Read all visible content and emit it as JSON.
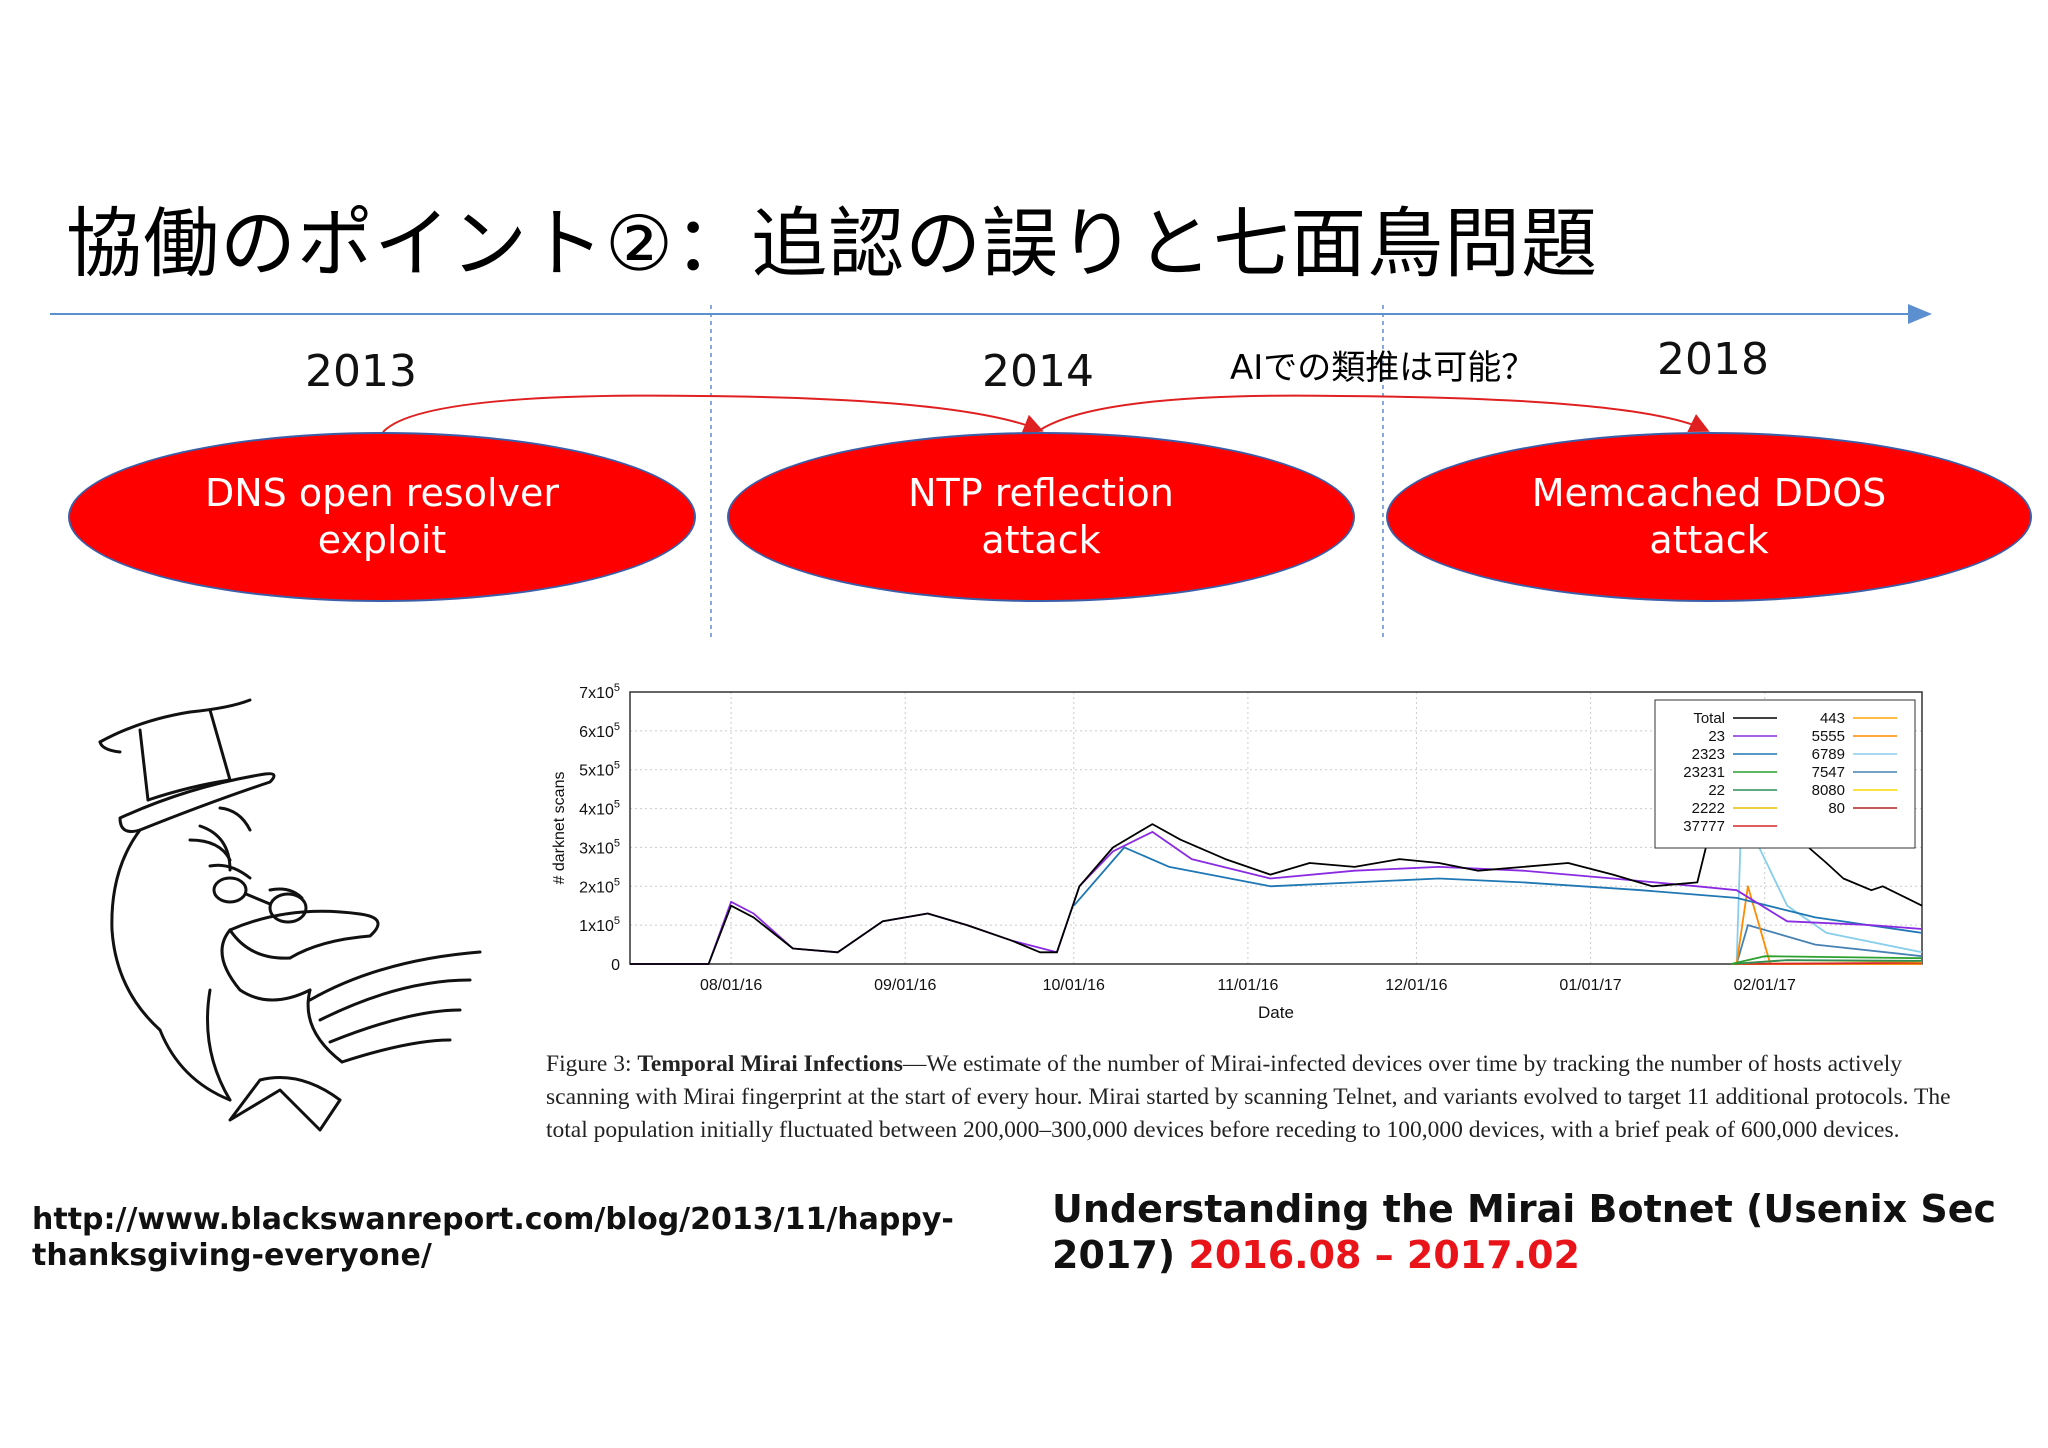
{
  "slide": {
    "title": "協働のポイント②：追認の誤りと七面鳥問題",
    "timeline": {
      "years": [
        "2013",
        "2014",
        "2018"
      ],
      "question": "AIでの類推は可能？",
      "events": [
        {
          "line1": "DNS open resolver",
          "line2": "exploit"
        },
        {
          "line1": "NTP reflection",
          "line2": "attack"
        },
        {
          "line1": "Memcached DDOS",
          "line2": "attack"
        }
      ],
      "colors": {
        "event_fill": "#ff0000",
        "event_border": "#3b5ea8",
        "arrow": "#5b8fd0",
        "curve": "#e02020"
      }
    },
    "turkey_image": "turkey-sketch-icon",
    "figure_caption": {
      "label": "Figure 3:",
      "bold_title": "Temporal Mirai Infections",
      "text": "—We estimate of the number of Mirai-infected devices over time by tracking the number of hosts actively scanning with Mirai fingerprint at the start of every hour. Mirai started by scanning Telnet, and variants evolved to target 11 additional protocols. The total population initially fluctuated between 200,000–300,000 devices before receding to 100,000 devices, with a brief peak of 600,000 devices."
    },
    "source_url": "http://www.blackswanreport.com/blog/2013/11/happy-thanksgiving-everyone/",
    "reference": {
      "text": "Understanding the Mirai Botnet (Usenix Sec 2017)",
      "dates": "2016.08 – 2017.02",
      "dates_color": "#e8141a"
    }
  },
  "chart_data": {
    "type": "line",
    "title": "",
    "xlabel": "Date",
    "ylabel": "# darknet scans",
    "x_ticks": [
      "08/01/16",
      "09/01/16",
      "10/01/16",
      "11/01/16",
      "12/01/16",
      "01/01/17",
      "02/01/17"
    ],
    "y_ticks": [
      "0",
      "1x10^5",
      "2x10^5",
      "3x10^5",
      "4x10^5",
      "5x10^5",
      "6x10^5",
      "7x10^5"
    ],
    "ylim": [
      0,
      700000
    ],
    "xlim": [
      "2016-07-14",
      "2017-03-01"
    ],
    "legend_placement": "top-right",
    "grid": true,
    "series": [
      {
        "name": "Total",
        "color": "#000000",
        "points": [
          [
            "2016-07-14",
            0
          ],
          [
            "2016-07-28",
            0
          ],
          [
            "2016-08-01",
            150000
          ],
          [
            "2016-08-05",
            120000
          ],
          [
            "2016-08-12",
            40000
          ],
          [
            "2016-08-20",
            30000
          ],
          [
            "2016-08-28",
            110000
          ],
          [
            "2016-09-05",
            130000
          ],
          [
            "2016-09-12",
            100000
          ],
          [
            "2016-09-20",
            60000
          ],
          [
            "2016-09-25",
            30000
          ],
          [
            "2016-09-28",
            30000
          ],
          [
            "2016-10-02",
            200000
          ],
          [
            "2016-10-08",
            300000
          ],
          [
            "2016-10-15",
            360000
          ],
          [
            "2016-10-20",
            320000
          ],
          [
            "2016-10-28",
            270000
          ],
          [
            "2016-11-05",
            230000
          ],
          [
            "2016-11-12",
            260000
          ],
          [
            "2016-11-20",
            250000
          ],
          [
            "2016-11-28",
            270000
          ],
          [
            "2016-12-05",
            260000
          ],
          [
            "2016-12-12",
            240000
          ],
          [
            "2016-12-20",
            250000
          ],
          [
            "2016-12-28",
            260000
          ],
          [
            "2017-01-05",
            230000
          ],
          [
            "2017-01-12",
            200000
          ],
          [
            "2017-01-20",
            210000
          ],
          [
            "2017-01-27",
            620000
          ],
          [
            "2017-01-30",
            480000
          ],
          [
            "2017-02-03",
            400000
          ],
          [
            "2017-02-08",
            310000
          ],
          [
            "2017-02-12",
            260000
          ],
          [
            "2017-02-15",
            220000
          ],
          [
            "2017-02-20",
            190000
          ],
          [
            "2017-02-22",
            200000
          ],
          [
            "2017-03-01",
            150000
          ]
        ]
      },
      {
        "name": "23",
        "color": "#8a2be2",
        "points": [
          [
            "2016-07-14",
            0
          ],
          [
            "2016-07-28",
            0
          ],
          [
            "2016-08-01",
            160000
          ],
          [
            "2016-08-05",
            130000
          ],
          [
            "2016-08-12",
            40000
          ],
          [
            "2016-08-20",
            30000
          ],
          [
            "2016-08-28",
            110000
          ],
          [
            "2016-09-05",
            130000
          ],
          [
            "2016-09-12",
            100000
          ],
          [
            "2016-09-20",
            60000
          ],
          [
            "2016-09-28",
            30000
          ],
          [
            "2016-10-02",
            200000
          ],
          [
            "2016-10-08",
            290000
          ],
          [
            "2016-10-15",
            340000
          ],
          [
            "2016-10-22",
            270000
          ],
          [
            "2016-11-05",
            220000
          ],
          [
            "2016-11-20",
            240000
          ],
          [
            "2016-12-05",
            250000
          ],
          [
            "2016-12-20",
            240000
          ],
          [
            "2017-01-05",
            220000
          ],
          [
            "2017-01-20",
            200000
          ],
          [
            "2017-01-27",
            190000
          ],
          [
            "2017-02-05",
            110000
          ],
          [
            "2017-02-20",
            100000
          ],
          [
            "2017-03-01",
            90000
          ]
        ]
      },
      {
        "name": "2323",
        "color": "#1f77b4",
        "points": [
          [
            "2016-10-01",
            150000
          ],
          [
            "2016-10-10",
            300000
          ],
          [
            "2016-10-18",
            250000
          ],
          [
            "2016-11-05",
            200000
          ],
          [
            "2016-11-20",
            210000
          ],
          [
            "2016-12-05",
            220000
          ],
          [
            "2016-12-20",
            210000
          ],
          [
            "2017-01-10",
            190000
          ],
          [
            "2017-01-27",
            170000
          ],
          [
            "2017-02-10",
            120000
          ],
          [
            "2017-03-01",
            80000
          ]
        ]
      },
      {
        "name": "23231",
        "color": "#2ca02c",
        "points": [
          [
            "2017-01-26",
            0
          ],
          [
            "2017-02-01",
            20000
          ],
          [
            "2017-03-01",
            15000
          ]
        ]
      },
      {
        "name": "22",
        "color": "#2e8b57",
        "points": [
          [
            "2017-01-26",
            0
          ],
          [
            "2017-02-05",
            10000
          ],
          [
            "2017-03-01",
            8000
          ]
        ]
      },
      {
        "name": "2222",
        "color": "#e5c100",
        "points": [
          [
            "2017-01-26",
            0
          ],
          [
            "2017-02-05",
            10000
          ],
          [
            "2017-03-01",
            6000
          ]
        ]
      },
      {
        "name": "37777",
        "color": "#d62728",
        "points": [
          [
            "2017-01-26",
            0
          ],
          [
            "2017-03-01",
            3000
          ]
        ]
      },
      {
        "name": "443",
        "color": "#ffa500",
        "points": [
          [
            "2017-01-26",
            0
          ],
          [
            "2017-03-01",
            2000
          ]
        ]
      },
      {
        "name": "5555",
        "color": "#ff8c00",
        "points": [
          [
            "2017-01-27",
            0
          ],
          [
            "2017-01-29",
            200000
          ],
          [
            "2017-01-31",
            100000
          ],
          [
            "2017-02-02",
            0
          ],
          [
            "2017-03-01",
            0
          ]
        ]
      },
      {
        "name": "6789",
        "color": "#87ceeb",
        "points": [
          [
            "2017-01-27",
            0
          ],
          [
            "2017-01-28",
            450000
          ],
          [
            "2017-01-31",
            300000
          ],
          [
            "2017-02-05",
            150000
          ],
          [
            "2017-02-12",
            80000
          ],
          [
            "2017-03-01",
            30000
          ]
        ]
      },
      {
        "name": "7547",
        "color": "#4682b4",
        "points": [
          [
            "2017-01-27",
            0
          ],
          [
            "2017-01-29",
            100000
          ],
          [
            "2017-02-10",
            50000
          ],
          [
            "2017-03-01",
            20000
          ]
        ]
      },
      {
        "name": "8080",
        "color": "#ffd700",
        "points": [
          [
            "2017-01-26",
            0
          ],
          [
            "2017-03-01",
            2000
          ]
        ]
      },
      {
        "name": "80",
        "color": "#b22222",
        "points": [
          [
            "2017-01-26",
            0
          ],
          [
            "2017-03-01",
            1000
          ]
        ]
      }
    ]
  }
}
